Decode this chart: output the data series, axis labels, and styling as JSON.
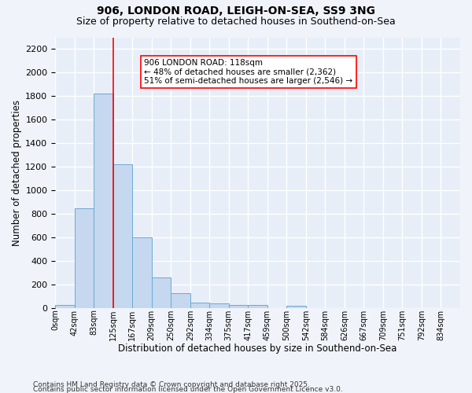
{
  "title1": "906, LONDON ROAD, LEIGH-ON-SEA, SS9 3NG",
  "title2": "Size of property relative to detached houses in Southend-on-Sea",
  "xlabel": "Distribution of detached houses by size in Southend-on-Sea",
  "ylabel": "Number of detached properties",
  "footnote1": "Contains HM Land Registry data © Crown copyright and database right 2025.",
  "footnote2": "Contains public sector information licensed under the Open Government Licence v3.0.",
  "bin_labels": [
    "0sqm",
    "42sqm",
    "83sqm",
    "125sqm",
    "167sqm",
    "209sqm",
    "250sqm",
    "292sqm",
    "334sqm",
    "375sqm",
    "417sqm",
    "459sqm",
    "500sqm",
    "542sqm",
    "584sqm",
    "626sqm",
    "667sqm",
    "709sqm",
    "751sqm",
    "792sqm",
    "834sqm"
  ],
  "bar_values": [
    25,
    850,
    1820,
    1220,
    600,
    260,
    130,
    50,
    40,
    30,
    25,
    0,
    20,
    0,
    0,
    0,
    0,
    0,
    0,
    0,
    0
  ],
  "bar_color": "#c5d8ef",
  "bar_edge_color": "#6aaad4",
  "vline_x": 2.5,
  "vline_color": "red",
  "annotation_text": "906 LONDON ROAD: 118sqm\n← 48% of detached houses are smaller (2,362)\n51% of semi-detached houses are larger (2,546) →",
  "ylim": [
    0,
    2300
  ],
  "yticks": [
    0,
    200,
    400,
    600,
    800,
    1000,
    1200,
    1400,
    1600,
    1800,
    2000,
    2200
  ],
  "bg_color": "#f0f4fa",
  "plot_bg_color": "#e8eef7",
  "grid_color": "white"
}
